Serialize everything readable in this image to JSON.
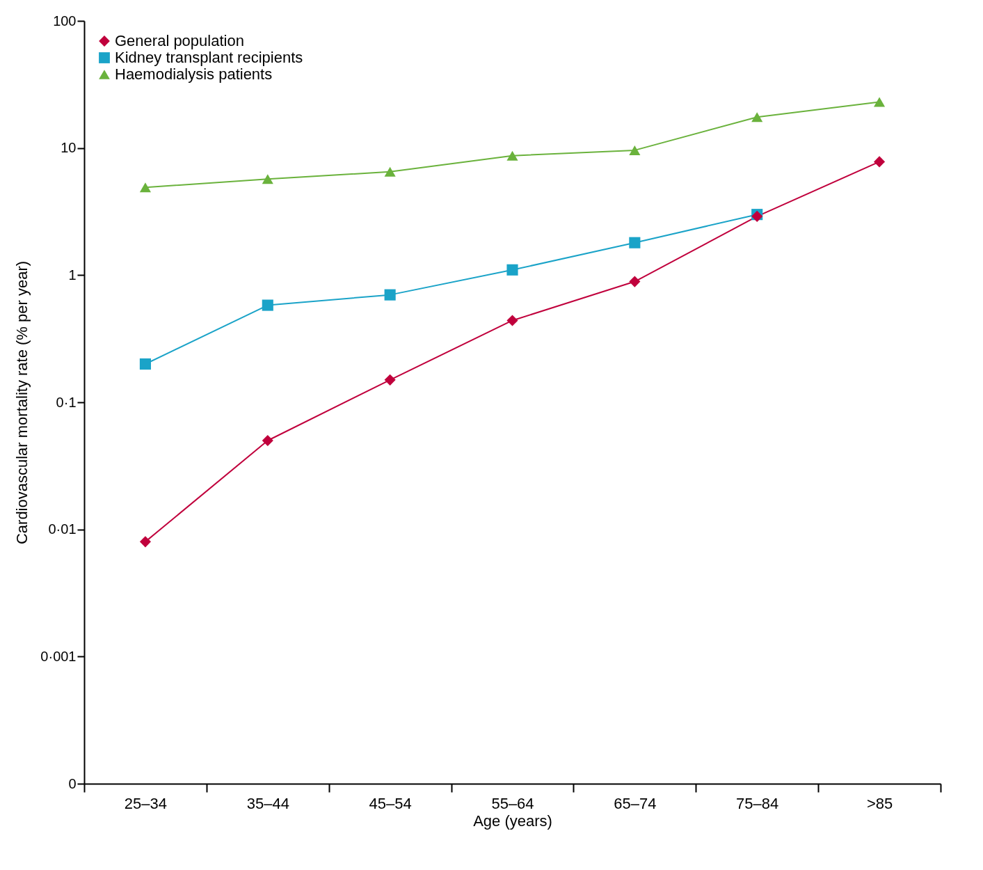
{
  "chart_data": {
    "type": "line",
    "xlabel": "Age (years)",
    "ylabel": "Cardiovascular mortality rate (% per year)",
    "categories": [
      "25–34",
      "35–44",
      "45–54",
      "55–64",
      "65–74",
      "75–84",
      ">85"
    ],
    "series": [
      {
        "name": "General population",
        "color": "#c0003c",
        "marker": "diamond",
        "values": [
          0.008,
          0.05,
          0.15,
          0.44,
          0.89,
          2.9,
          7.8
        ]
      },
      {
        "name": "Kidney transplant recipients",
        "color": "#1aa3c8",
        "marker": "square",
        "values": [
          0.2,
          0.58,
          0.7,
          1.1,
          1.8,
          3,
          null
        ]
      },
      {
        "name": "Haemodialysis patients",
        "color": "#6ab23c",
        "marker": "triangle",
        "values": [
          4.9,
          5.7,
          6.5,
          8.7,
          9.6,
          17.5,
          23
        ]
      }
    ],
    "log": true,
    "ylim": [
      0.0001,
      100
    ],
    "yticks": [
      {
        "value": 0.0001,
        "label": "0"
      },
      {
        "value": 0.001,
        "label": "0·001"
      },
      {
        "value": 0.01,
        "label": "0·01"
      },
      {
        "value": 0.1,
        "label": "0·1"
      },
      {
        "value": 1,
        "label": "1"
      },
      {
        "value": 10,
        "label": "10"
      },
      {
        "value": 100,
        "label": "100"
      }
    ],
    "grid": false,
    "legend": "top left",
    "line_style": "solid"
  }
}
